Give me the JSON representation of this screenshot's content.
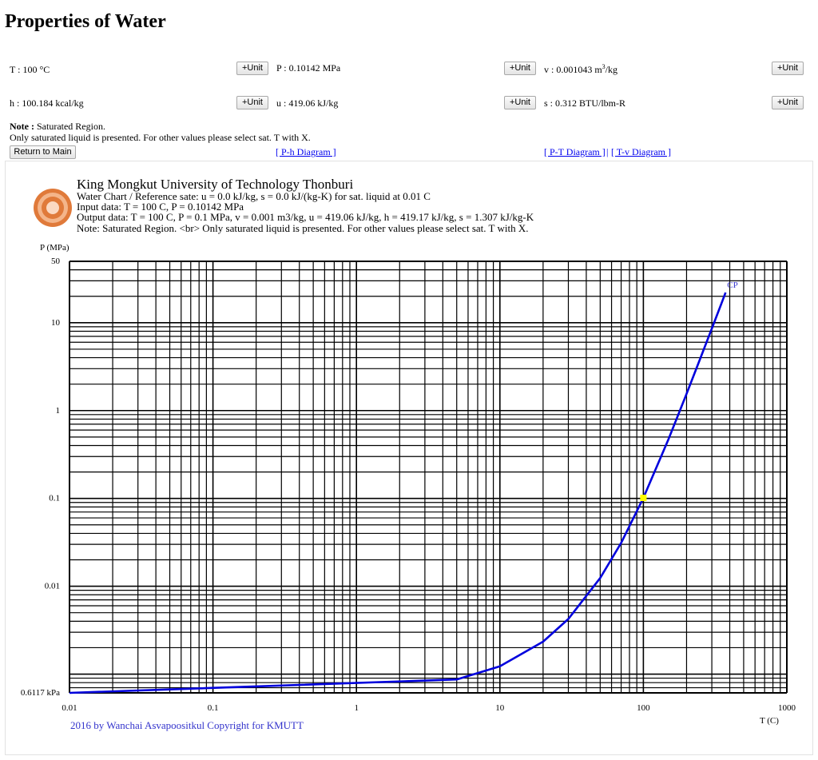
{
  "page": {
    "title": "Properties of Water"
  },
  "properties": {
    "T": "T : 100 °C",
    "P": "P : 0.10142 MPa",
    "v_prefix": "v : 0.001043 m",
    "v_sup": "3",
    "v_suffix": "/kg",
    "h": "h : 100.184 kcal/kg",
    "u": "u : 419.06 kJ/kg",
    "s": "s : 0.312 BTU/lbm-R"
  },
  "buttons": {
    "unit": "+Unit",
    "return": "Return to Main"
  },
  "note": {
    "label": "Note :",
    "line1": " Saturated Region.",
    "line2": "Only saturated liquid is presented. For other values please select sat. T with X."
  },
  "links": {
    "ph": "[ P-h Diagram ]",
    "pt": "[ P-T Diagram ]",
    "sep": "|",
    "tv": "[ T-v Diagram ]"
  },
  "header_block": {
    "institution": "King Mongkut University of Technology Thonburi",
    "line1": "Water Chart / Reference sate: u = 0.0 kJ/kg, s = 0.0 kJ/(kg-K) for sat. liquid at 0.01 C",
    "line2": "Input data: T = 100 C, P = 0.10142 MPa",
    "line3": "Output data: T = 100 C, P = 0.1 MPa, v = 0.001 m3/kg, u = 419.06 kJ/kg, h = 419.17 kJ/kg, s = 1.307 kJ/kg-K",
    "line4": "Note:  Saturated Region. <br> Only saturated liquid is presented. For other values please select sat. T with X."
  },
  "copyright": "2016 by Wanchai Asvapoositkul Copyright for KMUTT",
  "colors": {
    "curve": "#0000dd",
    "state_point": "#ffff00",
    "cp_label": "#3333cc",
    "logo": "#e07a3a",
    "grid": "#000000"
  },
  "chart_data": {
    "type": "line",
    "x_scale": "log",
    "y_scale": "log",
    "xlabel": "T (C)",
    "ylabel": "P (MPa)",
    "xlim": [
      0.01,
      1000
    ],
    "ylim": [
      0.0006117,
      50
    ],
    "x_ticks": [
      {
        "value": 0.01,
        "label": "0.01"
      },
      {
        "value": 0.1,
        "label": "0.1"
      },
      {
        "value": 1,
        "label": "1"
      },
      {
        "value": 10,
        "label": "10"
      },
      {
        "value": 100,
        "label": "100"
      },
      {
        "value": 1000,
        "label": "1000"
      }
    ],
    "y_ticks": [
      {
        "value": 0.0006117,
        "label": "0.6117 kPa"
      },
      {
        "value": 0.01,
        "label": "0.01"
      },
      {
        "value": 0.1,
        "label": "0.1"
      },
      {
        "value": 1,
        "label": "1"
      },
      {
        "value": 10,
        "label": "10"
      },
      {
        "value": 50,
        "label": "50"
      }
    ],
    "grid": true,
    "series": [
      {
        "x": [
          0.01,
          5,
          10,
          20,
          30,
          50,
          70,
          100,
          150,
          200,
          250,
          300,
          350,
          373.95
        ],
        "y": [
          0.0006117,
          0.00087,
          0.00123,
          0.00234,
          0.00425,
          0.0124,
          0.0312,
          0.1014,
          0.476,
          1.555,
          3.976,
          8.588,
          16.53,
          22.064
        ]
      }
    ],
    "annotations": [
      {
        "text": "CP",
        "x": 373.95,
        "y": 22.064
      }
    ],
    "state_point": {
      "x": 100,
      "y": 0.10142
    }
  }
}
